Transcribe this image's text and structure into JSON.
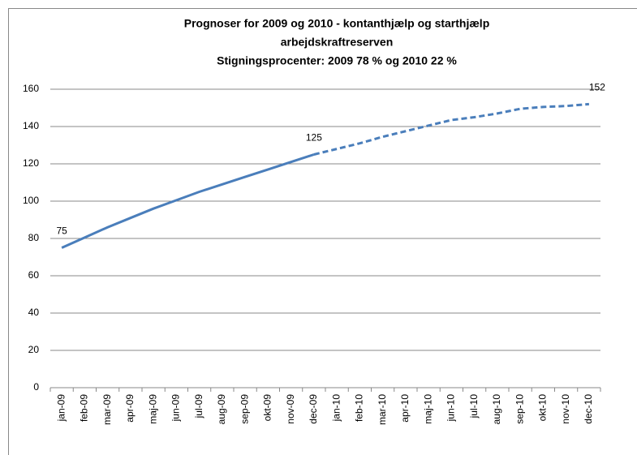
{
  "chart_data": {
    "type": "line",
    "title": [
      "Prognoser for 2009 og 2010 - kontanthjælp og starthjælp",
      "arbejdskraftreserven",
      "Stigningsprocenter: 2009 78 % og  2010 22 %"
    ],
    "categories": [
      "jan-09",
      "feb-09",
      "mar-09",
      "apr-09",
      "maj-09",
      "jun-09",
      "jul-09",
      "aug-09",
      "sep-09",
      "okt-09",
      "nov-09",
      "dec-09",
      "jan-10",
      "feb-10",
      "mar-10",
      "apr-10",
      "maj-10",
      "jun-10",
      "jul-10",
      "aug-10",
      "sep-10",
      "okt-10",
      "nov-10",
      "dec-10"
    ],
    "series": [
      {
        "color": "#4a7ebb",
        "dashed": false,
        "values": [
          75,
          80.5,
          86,
          91,
          96,
          100.5,
          105,
          109,
          113,
          117,
          121,
          125,
          null,
          null,
          null,
          null,
          null,
          null,
          null,
          null,
          null,
          null,
          null,
          null
        ],
        "value_labels": [
          "75",
          null,
          null,
          null,
          null,
          null,
          null,
          null,
          null,
          null,
          null,
          "125",
          null,
          null,
          null,
          null,
          null,
          null,
          null,
          null,
          null,
          null,
          null,
          null
        ]
      },
      {
        "color": "#4a7ebb",
        "dashed": true,
        "values": [
          null,
          null,
          null,
          null,
          null,
          null,
          null,
          null,
          null,
          null,
          null,
          125,
          128,
          131,
          134.5,
          137.5,
          140.5,
          143.5,
          145,
          147,
          149.5,
          150.5,
          151,
          152
        ],
        "value_labels": [
          null,
          null,
          null,
          null,
          null,
          null,
          null,
          null,
          null,
          null,
          null,
          null,
          null,
          null,
          null,
          null,
          null,
          null,
          null,
          null,
          null,
          null,
          null,
          "152"
        ]
      }
    ],
    "ylim": [
      0,
      160
    ],
    "yticks": [
      0,
      20,
      40,
      60,
      80,
      100,
      120,
      140,
      160
    ],
    "grid": true
  }
}
